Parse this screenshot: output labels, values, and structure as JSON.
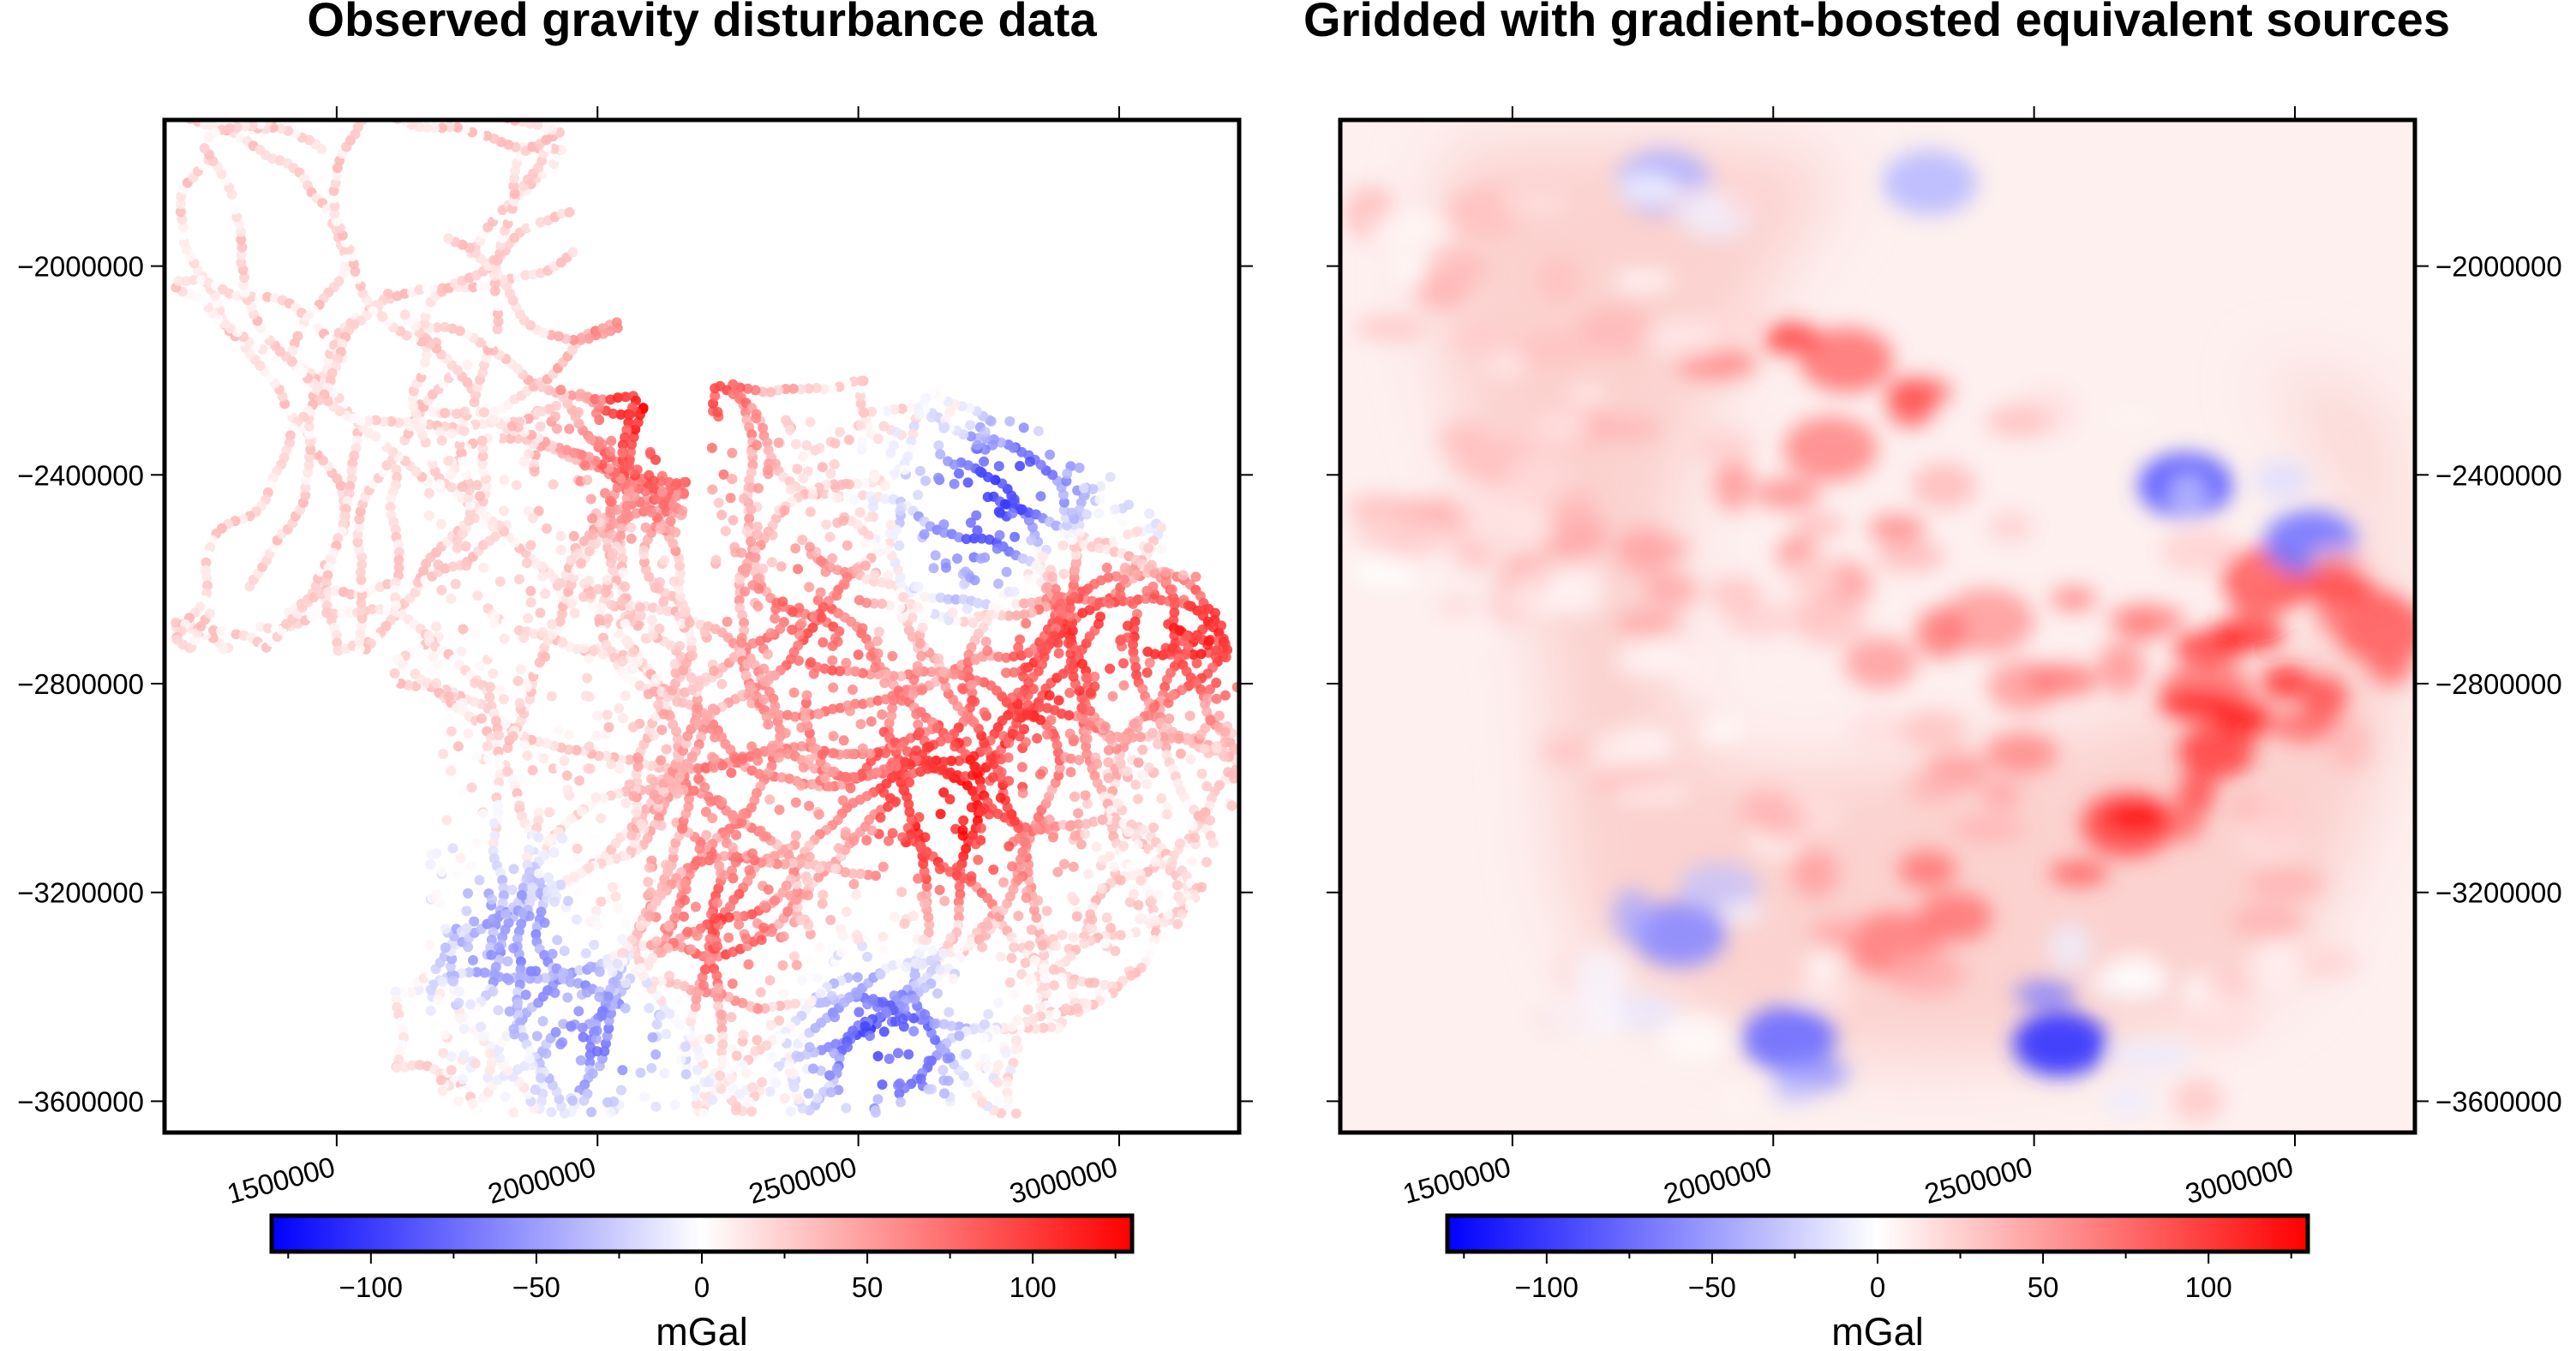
{
  "chart_data": [
    {
      "type": "scatter",
      "title": "Observed gravity disturbance data",
      "xlim": [
        1170000,
        3230000
      ],
      "ylim": [
        -3660000,
        -1720000
      ],
      "xticks": [
        1500000,
        2000000,
        2500000,
        3000000
      ],
      "xtick_labels": [
        "1500000",
        "2000000",
        "2500000",
        "3000000"
      ],
      "yticks": [
        -2000000,
        -2400000,
        -2800000,
        -3200000,
        -3600000
      ],
      "ytick_labels": [
        "−2000000",
        "−2400000",
        "−2800000",
        "−3200000",
        "−3600000"
      ],
      "ytick_side": "left",
      "colorbar": {
        "range": [
          -130,
          130
        ],
        "ticks": [
          -100,
          -50,
          0,
          50,
          100
        ],
        "tick_labels": [
          "−100",
          "−50",
          "0",
          "50",
          "100"
        ],
        "label": "mGal"
      },
      "features": [
        {
          "x": 2110000,
          "y": -2350000,
          "value": 62
        },
        {
          "x": 2150000,
          "y": -2180000,
          "value": 75
        },
        {
          "x": 2410000,
          "y": -2680000,
          "value": 55
        },
        {
          "x": 2950000,
          "y": -2600000,
          "value": 90
        },
        {
          "x": 2830000,
          "y": -2820000,
          "value": 70
        },
        {
          "x": 3170000,
          "y": -2700000,
          "value": 85
        },
        {
          "x": 2250000,
          "y": -2990000,
          "value": 40
        },
        {
          "x": 2680000,
          "y": -3070000,
          "value": 95
        },
        {
          "x": 2230000,
          "y": -3300000,
          "value": 68
        },
        {
          "x": 2550000,
          "y": -3490000,
          "value": -110
        },
        {
          "x": 2030000,
          "y": -3480000,
          "value": -80
        },
        {
          "x": 1820000,
          "y": -3280000,
          "value": -65
        },
        {
          "x": 2790000,
          "y": -2420000,
          "value": -90
        },
        {
          "x": 3030000,
          "y": -2530000,
          "value": -70
        },
        {
          "x": 2720000,
          "y": -2560000,
          "value": -60
        },
        {
          "x": 2520000,
          "y": -2900000,
          "value": 30
        }
      ]
    },
    {
      "type": "heatmap",
      "title": "Gridded with gradient-boosted equivalent sources",
      "xlim": [
        1170000,
        3230000
      ],
      "ylim": [
        -3660000,
        -1720000
      ],
      "xticks": [
        1500000,
        2000000,
        2500000,
        3000000
      ],
      "xtick_labels": [
        "1500000",
        "2000000",
        "2500000",
        "3000000"
      ],
      "yticks": [
        -2000000,
        -2400000,
        -2800000,
        -3200000,
        -3600000
      ],
      "ytick_labels": [
        "−2000000",
        "−2400000",
        "−2800000",
        "−3200000",
        "−3600000"
      ],
      "ytick_side": "right",
      "colorbar": {
        "range": [
          -130,
          130
        ],
        "ticks": [
          -100,
          -50,
          0,
          50,
          100
        ],
        "tick_labels": [
          "−100",
          "−50",
          "0",
          "50",
          "100"
        ],
        "label": "mGal"
      },
      "features": [
        {
          "x": 2110000,
          "y": -2350000,
          "value": 60
        },
        {
          "x": 2140000,
          "y": -2180000,
          "value": 70
        },
        {
          "x": 2410000,
          "y": -2680000,
          "value": 50
        },
        {
          "x": 2950000,
          "y": -2600000,
          "value": 88
        },
        {
          "x": 2830000,
          "y": -2820000,
          "value": 68
        },
        {
          "x": 3170000,
          "y": -2700000,
          "value": 80
        },
        {
          "x": 2680000,
          "y": -3070000,
          "value": 90
        },
        {
          "x": 2230000,
          "y": -3300000,
          "value": 65
        },
        {
          "x": 2550000,
          "y": -3490000,
          "value": -105
        },
        {
          "x": 2030000,
          "y": -3480000,
          "value": -75
        },
        {
          "x": 1820000,
          "y": -3280000,
          "value": -60
        },
        {
          "x": 2790000,
          "y": -2420000,
          "value": -85
        },
        {
          "x": 3030000,
          "y": -2530000,
          "value": -70
        },
        {
          "x": 1790000,
          "y": -1840000,
          "value": -40
        },
        {
          "x": 2300000,
          "y": -1840000,
          "value": -35
        }
      ]
    }
  ]
}
